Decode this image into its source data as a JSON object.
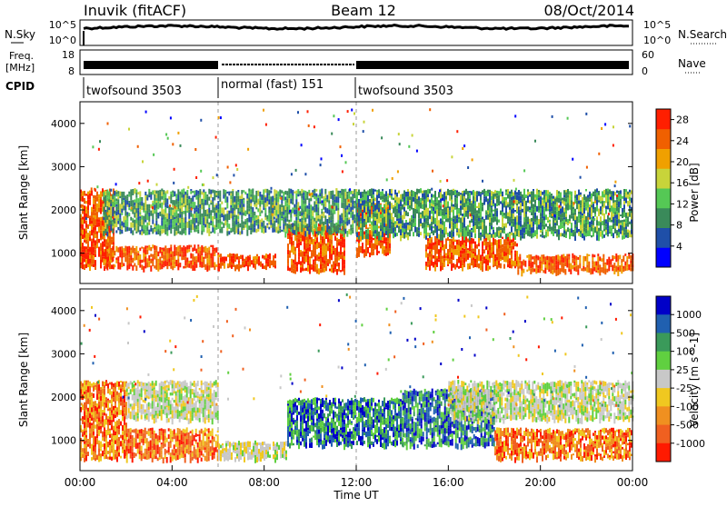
{
  "header": {
    "station": "Inuvik (fitACF)",
    "beam": "Beam 12",
    "date": "08/Oct/2014"
  },
  "noise_panel": {
    "left_label": "N.Sky",
    "right_label": "N.Search",
    "left_ticks": [
      "10^5",
      "10^0"
    ],
    "right_ticks": [
      "10^5",
      "10^0"
    ]
  },
  "freq_panel": {
    "left_label_line1": "Freq.",
    "left_label_line2": "[MHz]",
    "left_ticks": [
      "18",
      "8"
    ],
    "right_label": "Nave",
    "right_ticks": [
      "60",
      "0"
    ]
  },
  "cpid_panel": {
    "label": "CPID",
    "segments": [
      {
        "name": "twofsound 3503",
        "start": "00:00",
        "end": "06:00"
      },
      {
        "name": "normal (fast) 151",
        "start": "06:00",
        "end": "12:00"
      },
      {
        "name": "twofsound 3503",
        "start": "12:00",
        "end": "24:00"
      }
    ]
  },
  "colors": {
    "power_scale": [
      "#0000ff",
      "#1f4fa8",
      "#3a8a5a",
      "#55c855",
      "#c8d43a",
      "#f0a000",
      "#f06000",
      "#ff1f00"
    ],
    "velocity_scale": [
      "#0000c8",
      "#2060b0",
      "#3a9a5a",
      "#60d040",
      "#c8c8c8",
      "#f0c820",
      "#f09020",
      "#f06020",
      "#ff1a00"
    ]
  },
  "chart_data": [
    {
      "type": "heatmap",
      "panel": "power",
      "ylabel": "Slant Range [km]",
      "ylim": [
        300,
        4500
      ],
      "yticks": [
        "1000",
        "2000",
        "3000",
        "4000"
      ],
      "xlim": [
        "00:00",
        "24:00"
      ],
      "colorbar": {
        "label": "Power [dB]",
        "ticks": [
          "4",
          "8",
          "12",
          "16",
          "20",
          "24",
          "28"
        ],
        "range": [
          0,
          30
        ]
      },
      "bands": [
        {
          "start_h": 0,
          "end_h": 1.5,
          "range_low": 700,
          "range_high": 2500,
          "level": "high"
        },
        {
          "start_h": 1,
          "end_h": 6,
          "range_low": 700,
          "range_high": 1200,
          "level": "high"
        },
        {
          "start_h": 6,
          "end_h": 8.5,
          "range_low": 700,
          "range_high": 1000,
          "level": "high"
        },
        {
          "start_h": 9,
          "end_h": 11.5,
          "range_low": 600,
          "range_high": 1700,
          "level": "high"
        },
        {
          "start_h": 12,
          "end_h": 13.5,
          "range_low": 1000,
          "range_high": 2200,
          "level": "high"
        },
        {
          "start_h": 15,
          "end_h": 19,
          "range_low": 700,
          "range_high": 1400,
          "level": "high"
        },
        {
          "start_h": 19,
          "end_h": 24,
          "range_low": 600,
          "range_high": 1000,
          "level": "high"
        },
        {
          "start_h": 1,
          "end_h": 12,
          "range_low": 1500,
          "range_high": 2500,
          "level": "medium"
        },
        {
          "start_h": 12,
          "end_h": 24,
          "range_low": 1400,
          "range_high": 2500,
          "level": "medium"
        }
      ]
    },
    {
      "type": "heatmap",
      "panel": "velocity",
      "xlabel": "Time UT",
      "ylabel": "Slant Range [km]",
      "ylim": [
        300,
        4500
      ],
      "yticks": [
        "1000",
        "2000",
        "3000",
        "4000"
      ],
      "xticks": [
        "00:00",
        "04:00",
        "08:00",
        "12:00",
        "16:00",
        "20:00",
        "00:00"
      ],
      "colorbar": {
        "label": "Velocity [m s^-1]",
        "ticks": [
          "1000",
          "500",
          "100",
          "25",
          "-25",
          "-100",
          "-500",
          "-1000"
        ]
      },
      "bands": [
        {
          "start_h": 0,
          "end_h": 2,
          "range_low": 600,
          "range_high": 2400,
          "level": "negative"
        },
        {
          "start_h": 2,
          "end_h": 6,
          "range_low": 600,
          "range_high": 1300,
          "level": "negative"
        },
        {
          "start_h": 2,
          "end_h": 6,
          "range_low": 1500,
          "range_high": 2400,
          "level": "zero"
        },
        {
          "start_h": 6,
          "end_h": 9,
          "range_low": 600,
          "range_high": 1000,
          "level": "zero"
        },
        {
          "start_h": 9,
          "end_h": 14,
          "range_low": 900,
          "range_high": 2000,
          "level": "positive"
        },
        {
          "start_h": 14,
          "end_h": 18,
          "range_low": 900,
          "range_high": 2200,
          "level": "positive"
        },
        {
          "start_h": 18,
          "end_h": 24,
          "range_low": 600,
          "range_high": 1300,
          "level": "negative"
        },
        {
          "start_h": 16,
          "end_h": 24,
          "range_low": 1500,
          "range_high": 2400,
          "level": "zero"
        }
      ]
    }
  ]
}
